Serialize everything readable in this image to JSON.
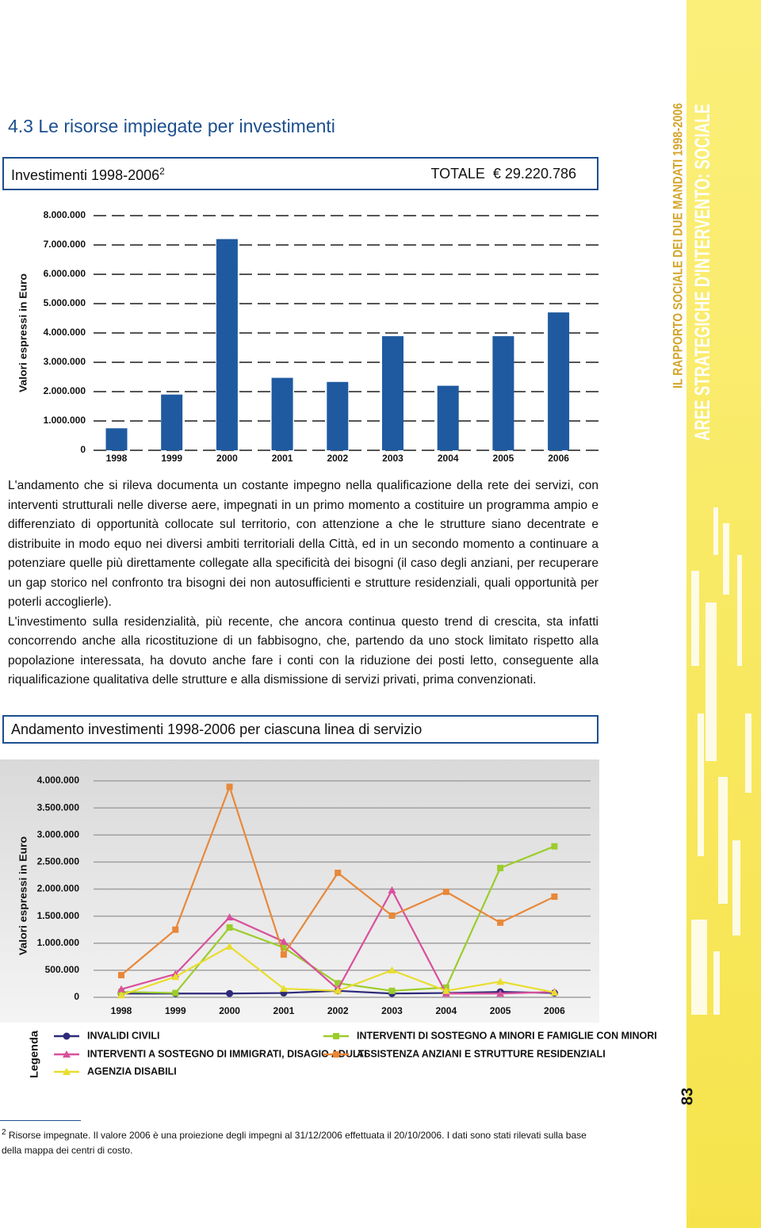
{
  "section_title": "4.3 Le risorse impiegate per investimenti",
  "sidebar": {
    "title": "AREE STRATEGICHE D'INTERVENTO: SOCIALE",
    "subtitle": "IL RAPPORTO SOCIALE DEI DUE MANDATI 1998-2006"
  },
  "chart_data": [
    {
      "type": "bar",
      "title": "Investimenti 1998-2006",
      "title_note": "2",
      "total_label": "TOTALE",
      "total_value": "€ 29.220.786",
      "y_label": "Valori espressi in Euro",
      "categories": [
        "1998",
        "1999",
        "2000",
        "2001",
        "2002",
        "2003",
        "2004",
        "2005",
        "2006"
      ],
      "values": [
        750000,
        1900000,
        7200000,
        2470000,
        2330000,
        3890000,
        2200000,
        3890000,
        4700000
      ],
      "color": "#1f5aa0",
      "ylim": [
        0,
        8000000
      ],
      "yticks": [
        0,
        {
          "value": 1000000,
          "label": "1.000.000"
        },
        {
          "value": 2000000,
          "label": "2.000.000"
        },
        {
          "value": 3000000,
          "label": "3.000.000"
        },
        {
          "value": 4000000,
          "label": "4.000.000"
        },
        {
          "value": 5000000,
          "label": "5.000.000"
        },
        {
          "value": 6000000,
          "label": "6.000.000"
        },
        {
          "value": 7000000,
          "label": "7.000.000"
        },
        {
          "value": 8000000,
          "label": "8.000.000"
        }
      ],
      "grid": true
    },
    {
      "type": "line",
      "title": "Andamento investimenti 1998-2006 per ciascuna linea di servizio",
      "y_label": "Valori espressi in Euro",
      "legend_title": "Legenda",
      "categories": [
        "1998",
        "1999",
        "2000",
        "2001",
        "2002",
        "2003",
        "2004",
        "2005",
        "2006"
      ],
      "series": [
        {
          "name": "INVALIDI CIVILI",
          "color": "#2e2a7a",
          "marker": "circle",
          "values": [
            70000,
            70000,
            70000,
            80000,
            120000,
            70000,
            80000,
            100000,
            80000
          ]
        },
        {
          "name": "INTERVENTI DI SOSTEGNO A MINORI E FAMIGLIE CON MINORI",
          "color": "#9ccc2c",
          "marker": "square",
          "values": [
            100000,
            80000,
            1290000,
            920000,
            260000,
            120000,
            180000,
            2390000,
            2790000
          ]
        },
        {
          "name": "INTERVENTI A SOSTEGNO DI IMMIGRATI, DISAGIO ADULTI",
          "color": "#d9509c",
          "marker": "triangle",
          "values": [
            150000,
            430000,
            1480000,
            1030000,
            150000,
            1980000,
            70000,
            70000,
            100000
          ]
        },
        {
          "name": "ASSISTENZA ANZIANI E STRUTTURE RESIDENZIALI",
          "color": "#e8883a",
          "marker": "square",
          "values": [
            410000,
            1250000,
            3890000,
            790000,
            2300000,
            1510000,
            1950000,
            1380000,
            1860000
          ]
        },
        {
          "name": "AGENZIA DISABILI",
          "color": "#e9dd2e",
          "marker": "triangle",
          "values": [
            40000,
            380000,
            940000,
            160000,
            120000,
            500000,
            120000,
            290000,
            90000
          ]
        }
      ],
      "ylim": [
        0,
        4000000
      ],
      "yticks": [
        0,
        {
          "value": 500000,
          "label": "500.000"
        },
        {
          "value": 1000000,
          "label": "1.000.000"
        },
        {
          "value": 1500000,
          "label": "1.500.000"
        },
        {
          "value": 2000000,
          "label": "2.000.000"
        },
        {
          "value": 2500000,
          "label": "2.500.000"
        },
        {
          "value": 3000000,
          "label": "3.000.000"
        },
        {
          "value": 3500000,
          "label": "3.500.000"
        },
        {
          "value": 4000000,
          "label": "4.000.000"
        }
      ],
      "grid": true
    }
  ],
  "body": {
    "paragraphs": [
      "L'andamento che si rileva documenta un costante impegno nella qualificazione della rete dei servizi, con interventi strutturali nelle diverse aere, impegnati in un primo momento a costituire un programma ampio e differenziato di opportunità collocate sul territorio, con attenzione a che le strutture siano decentrate e distribuite in modo equo nei diversi ambiti territoriali della Città, ed in un secondo momento a continuare a potenziare quelle più direttamente collegate alla specificità dei bisogni (il caso degli anziani, per recuperare un gap storico nel confronto tra bisogni dei non autosufficienti e strutture residenziali, quali opportunità per poterli accoglierle).",
      "L'investimento sulla residenzialità, più recente, che ancora continua questo trend di crescita, sta infatti concorrendo anche alla ricostituzione di un fabbisogno, che, partendo da uno stock limitato rispetto alla popolazione interessata, ha dovuto anche fare i conti con la riduzione dei posti letto, conseguente alla riqualificazione qualitativa delle strutture e alla dismissione di servizi privati, prima convenzionati."
    ]
  },
  "footnote": {
    "number": "2",
    "text": "Risorse impegnate. Il valore 2006 è una proiezione degli impegni al 31/12/2006 effettuata il 20/10/2006. I dati sono stati rilevati sulla base della mappa dei centri di costo."
  },
  "page_number": "83"
}
